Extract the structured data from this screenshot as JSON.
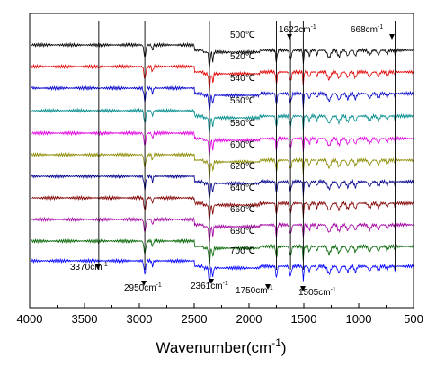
{
  "chart_data": {
    "type": "line",
    "title": "",
    "xlabel": "Wavenumber",
    "xlabel_unit": "(cm",
    "xlabel_sup": "-1",
    "xlabel_close": ")",
    "ylabel": "",
    "xlim": [
      4000,
      500
    ],
    "x_reversed": true,
    "grid": false,
    "y_axis_shown": false,
    "x_ticks": [
      4000,
      3500,
      3000,
      2500,
      2000,
      1500,
      1000,
      500
    ],
    "series": [
      {
        "name": "500℃",
        "color": "#000000"
      },
      {
        "name": "520℃",
        "color": "#e00000"
      },
      {
        "name": "540℃",
        "color": "#0000c8"
      },
      {
        "name": "560℃",
        "color": "#008b8b"
      },
      {
        "name": "580℃",
        "color": "#e000e0"
      },
      {
        "name": "600℃",
        "color": "#8b8b00"
      },
      {
        "name": "620℃",
        "color": "#00008b"
      },
      {
        "name": "640℃",
        "color": "#800000"
      },
      {
        "name": "660℃",
        "color": "#a000a0"
      },
      {
        "name": "680℃",
        "color": "#006400"
      },
      {
        "name": "700℃",
        "color": "#0000ff"
      }
    ],
    "peaks": [
      3370,
      2950,
      2361,
      1750,
      1622,
      1505,
      668
    ],
    "annotations": [
      {
        "text": "3370cm",
        "sup": "-1",
        "x": 3370
      },
      {
        "text": "2950cm",
        "sup": "-1",
        "x": 2950
      },
      {
        "text": "2361cm",
        "sup": "-1",
        "x": 2361
      },
      {
        "text": "1750cm",
        "sup": "-1",
        "x": 1750
      },
      {
        "text": "1505cm",
        "sup": "-1",
        "x": 1505
      },
      {
        "text": "1622cm",
        "sup": "-1",
        "x": 1622
      },
      {
        "text": "668cm",
        "sup": "-1",
        "x": 668
      }
    ]
  }
}
